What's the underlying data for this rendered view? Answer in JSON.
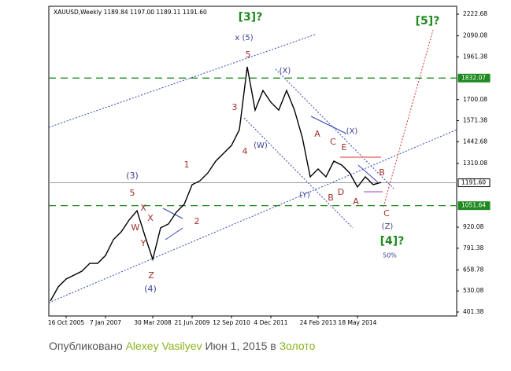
{
  "chart_data": {
    "type": "line",
    "title": "XAUUSD,Weekly  1189.84 1197.00 1189.11 1191.60",
    "categories": [
      null,
      null,
      "16 Oct 2005",
      null,
      null,
      null,
      null,
      "7 Jan 2007",
      null,
      null,
      null,
      null,
      null,
      "30 Mar 2008",
      null,
      null,
      null,
      null,
      "21 Jun 2009",
      null,
      null,
      null,
      null,
      "12 Sep 2010",
      null,
      null,
      null,
      null,
      "4 Dec 2011",
      null,
      null,
      null,
      null,
      null,
      "24 Feb 2013",
      null,
      null,
      null,
      null,
      "18 May 2014",
      null,
      null,
      null
    ],
    "values": [
      469,
      555,
      603,
      627,
      651,
      699,
      699,
      747,
      844,
      892,
      964,
      1021,
      868,
      723,
      916,
      940,
      1012,
      1060,
      1180,
      1204,
      1252,
      1324,
      1372,
      1420,
      1516,
      1901,
      1636,
      1756,
      1684,
      1636,
      1756,
      1636,
      1468,
      1228,
      1276,
      1228,
      1324,
      1300,
      1252,
      1166,
      1228,
      1180,
      1194
    ],
    "color": "#000000",
    "ylim": [
      377,
      2271
    ],
    "yticks": [
      2222.68,
      2090.08,
      1961.38,
      1700.08,
      1571.38,
      1442.68,
      1310.08,
      920.08,
      791.38,
      658.78,
      530.08,
      401.38
    ],
    "levels": [
      {
        "value": 1832.07,
        "label": "1832.07",
        "color": "#1f8a1f"
      },
      {
        "value": 1191.6,
        "label": "1191.60",
        "color": "#9a9a9a"
      },
      {
        "value": 1051.64,
        "label": "1051.64",
        "color": "#1f8a1f"
      }
    ],
    "annotations": [
      {
        "text": "x (5)",
        "color": "#3a3f8f"
      },
      {
        "text": "[3]?",
        "color": "#1f8a1f"
      },
      {
        "text": "[5]?",
        "color": "#1f8a1f"
      },
      {
        "text": "5",
        "color": "#a0302a"
      },
      {
        "text": "3",
        "color": "#a0302a"
      },
      {
        "text": "4",
        "color": "#a0302a"
      },
      {
        "text": "(W)",
        "color": "#3a3f8f"
      },
      {
        "text": "(X)",
        "color": "#3a3f8f"
      },
      {
        "text": "(X)",
        "color": "#3a3f8f"
      },
      {
        "text": "A",
        "color": "#a0302a"
      },
      {
        "text": "C",
        "color": "#a0302a"
      },
      {
        "text": "E",
        "color": "#a0302a"
      },
      {
        "text": "B",
        "color": "#a0302a"
      },
      {
        "text": "(Y)",
        "color": "#3a3f8f"
      },
      {
        "text": "B",
        "color": "#a0302a"
      },
      {
        "text": "D",
        "color": "#a0302a"
      },
      {
        "text": "A",
        "color": "#a0302a"
      },
      {
        "text": "C",
        "color": "#a0302a"
      },
      {
        "text": "(Z)",
        "color": "#3a3f8f"
      },
      {
        "text": "[4]?",
        "color": "#1f8a1f"
      },
      {
        "text": "50%",
        "color": "#3a3f8f"
      },
      {
        "text": "1",
        "color": "#a0302a"
      },
      {
        "text": "2",
        "color": "#a0302a"
      },
      {
        "text": "(3)",
        "color": "#3a3f8f"
      },
      {
        "text": "5",
        "color": "#a0302a"
      },
      {
        "text": "X",
        "color": "#a0302a"
      },
      {
        "text": "X",
        "color": "#a0302a"
      },
      {
        "text": "W",
        "color": "#a0302a"
      },
      {
        "text": "Y",
        "color": "#a0302a"
      },
      {
        "text": "Z",
        "color": "#a0302a"
      },
      {
        "text": "(4)",
        "color": "#3a3f8f"
      }
    ]
  },
  "caption": {
    "prefix": "Опубликовано",
    "author": "Alexey Vasilyev",
    "date": "Июн 1, 2015",
    "in": "в",
    "category": "Золото"
  }
}
